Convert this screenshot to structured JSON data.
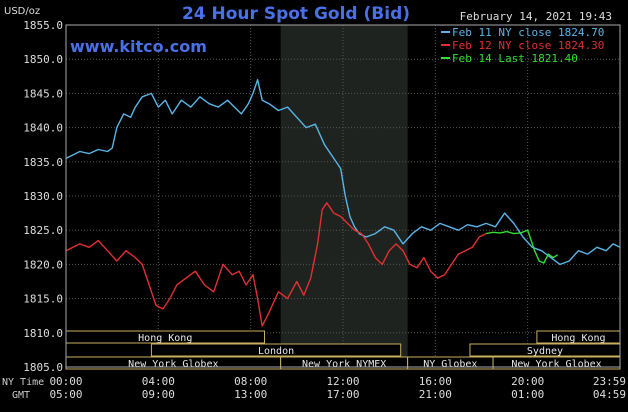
{
  "chart_data": {
    "type": "line",
    "title": "24 Hour Spot Gold (Bid)",
    "ylabel": "USD/oz",
    "watermark": "www.kitco.com",
    "date_label": "February 14, 2021 19:43",
    "ylim": [
      1805,
      1855
    ],
    "y_ticks": [
      "1855.0",
      "1850.0",
      "1845.0",
      "1840.0",
      "1835.0",
      "1830.0",
      "1825.0",
      "1820.0",
      "1815.0",
      "1810.0",
      "1805.0"
    ],
    "x_ticks_ny": [
      "00:00",
      "04:00",
      "08:00",
      "12:00",
      "16:00",
      "20:00",
      "23:59"
    ],
    "x_ticks_gmt": [
      "05:00",
      "09:00",
      "13:00",
      "17:00",
      "21:00",
      "01:00",
      "04:59"
    ],
    "row_label_ny": "NY Time",
    "row_label_gmt": "GMT",
    "legend": [
      {
        "label": "Feb 11 NY close 1824.70",
        "color": "#5ab4e6"
      },
      {
        "label": "Feb 12 NY close 1824.30",
        "color": "#e03030"
      },
      {
        "label": "Feb 14 Last 1821.40",
        "color": "#33dd33"
      }
    ],
    "sessions": [
      {
        "label": "Hong Kong",
        "start": 0,
        "end": 8.6,
        "row": 0
      },
      {
        "label": "Hong Kong",
        "start": 20.4,
        "end": 24,
        "row": 0
      },
      {
        "label": "London",
        "start": 3.7,
        "end": 14.5,
        "row": 1
      },
      {
        "label": "Sydney",
        "start": 17.5,
        "end": 24,
        "row": 1
      },
      {
        "label": "New York Globex",
        "start": 0,
        "end": 9.3,
        "row": 2
      },
      {
        "label": "New York NYMEX",
        "start": 9.3,
        "end": 14.8,
        "row": 2
      },
      {
        "label": "NY Globex",
        "start": 14.8,
        "end": 18.5,
        "row": 2
      },
      {
        "label": "New York Globex",
        "start": 18.5,
        "end": 24,
        "row": 2
      }
    ],
    "series": [
      {
        "name": "Feb 11 NY close 1824.70",
        "color": "#5ab4e6",
        "x": [
          0,
          0.3,
          0.6,
          1,
          1.4,
          1.8,
          2,
          2.2,
          2.5,
          2.8,
          3,
          3.3,
          3.7,
          4,
          4.3,
          4.6,
          5,
          5.4,
          5.8,
          6.2,
          6.6,
          7,
          7.3,
          7.6,
          7.9,
          8.1,
          8.3,
          8.5,
          8.8,
          9.2,
          9.6,
          10,
          10.4,
          10.8,
          11.2,
          11.6,
          11.9,
          12.1,
          12.3,
          12.5,
          12.7,
          13,
          13.4,
          13.8,
          14.2,
          14.6,
          15,
          15.4,
          15.8,
          16.2,
          16.6,
          17,
          17.4,
          17.8,
          18.2,
          18.6,
          19,
          19.4,
          19.8,
          20.2,
          20.6,
          21,
          21.4,
          21.8,
          22.2,
          22.6,
          23,
          23.4,
          23.7,
          24
        ],
        "y": [
          1835.5,
          1836,
          1836.5,
          1836.2,
          1836.8,
          1836.5,
          1837,
          1840,
          1842,
          1841.5,
          1843,
          1844.5,
          1845,
          1843,
          1844,
          1842,
          1844,
          1843,
          1844.5,
          1843.5,
          1843,
          1844,
          1843,
          1842,
          1843.5,
          1845,
          1847,
          1844,
          1843.5,
          1842.5,
          1843,
          1841.5,
          1840,
          1840.5,
          1837.5,
          1835.5,
          1834,
          1830,
          1827,
          1825.5,
          1824.5,
          1824,
          1824.5,
          1825.5,
          1825,
          1823,
          1824.5,
          1825.5,
          1825,
          1826,
          1825.5,
          1825,
          1825.8,
          1825.5,
          1826,
          1825.5,
          1827.5,
          1826,
          1824,
          1822.5,
          1822,
          1821,
          1820,
          1820.5,
          1822,
          1821.5,
          1822.5,
          1822,
          1823,
          1822.5
        ]
      },
      {
        "name": "Feb 12 NY close 1824.30",
        "color": "#e03030",
        "x": [
          0,
          0.3,
          0.6,
          1,
          1.4,
          1.8,
          2.2,
          2.6,
          3,
          3.3,
          3.6,
          3.9,
          4.2,
          4.5,
          4.8,
          5.2,
          5.6,
          6,
          6.4,
          6.8,
          7.2,
          7.5,
          7.8,
          8.1,
          8.3,
          8.5,
          8.8,
          9.2,
          9.6,
          10,
          10.3,
          10.6,
          10.9,
          11.1,
          11.3,
          11.6,
          11.9,
          12.2,
          12.5,
          12.8,
          13.1,
          13.4,
          13.7,
          14,
          14.3,
          14.6,
          14.9,
          15.2,
          15.5,
          15.8,
          16.1,
          16.4,
          16.7,
          17,
          17.3,
          17.6,
          17.9,
          18.2
        ],
        "y": [
          1822,
          1822.5,
          1823,
          1822.5,
          1823.5,
          1822,
          1820.5,
          1822,
          1821,
          1820,
          1817,
          1814,
          1813.5,
          1815,
          1817,
          1818,
          1819,
          1817,
          1816,
          1820,
          1818.5,
          1819,
          1817,
          1818.5,
          1815,
          1811,
          1813,
          1816,
          1815,
          1817.5,
          1815.5,
          1818,
          1823,
          1828,
          1829,
          1827.5,
          1827,
          1826,
          1825,
          1824.5,
          1823,
          1821,
          1820,
          1822,
          1823,
          1822,
          1820,
          1819.5,
          1821,
          1819,
          1818,
          1818.5,
          1820,
          1821.5,
          1822,
          1822.5,
          1824,
          1824.5
        ]
      },
      {
        "name": "Feb 14 Last 1821.40",
        "color": "#33dd33",
        "x": [
          18.2,
          18.5,
          18.8,
          19.1,
          19.4,
          19.7,
          20,
          20.3,
          20.5,
          20.7,
          20.9,
          21.1,
          21.3
        ],
        "y": [
          1824.5,
          1824.7,
          1824.6,
          1824.8,
          1824.5,
          1824.6,
          1825,
          1822,
          1820.5,
          1820.2,
          1821.5,
          1821,
          1821.4
        ]
      }
    ]
  }
}
